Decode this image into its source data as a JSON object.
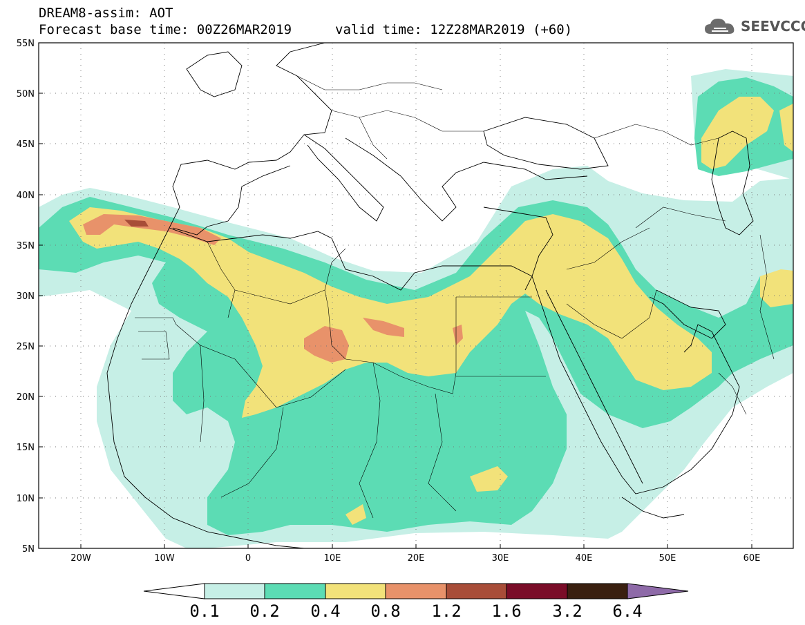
{
  "title": {
    "line1": "DREAM8-assim: AOT",
    "line2_left": "Forecast base time: 00Z26MAR2019",
    "line2_right": "valid time: 12Z28MAR2019 (+60)"
  },
  "logo": {
    "text": "SEEVCCC",
    "icon": "cloud-icon"
  },
  "map": {
    "lat_labels": [
      "55N",
      "50N",
      "45N",
      "40N",
      "35N",
      "30N",
      "25N",
      "20N",
      "15N",
      "10N",
      "5N"
    ],
    "lon_labels": [
      "20W",
      "10W",
      "0",
      "10E",
      "20E",
      "30E",
      "40E",
      "50E",
      "60E"
    ]
  },
  "colorbar": {
    "labels": [
      "0.1",
      "0.2",
      "0.4",
      "0.8",
      "1.2",
      "1.6",
      "3.2",
      "6.4"
    ],
    "colors": [
      "#ffffff",
      "#c6efe6",
      "#5cdcb4",
      "#f2e27a",
      "#e8926a",
      "#a84d38",
      "#7a0d28",
      "#3a2010",
      "#8e6aa8"
    ]
  }
}
